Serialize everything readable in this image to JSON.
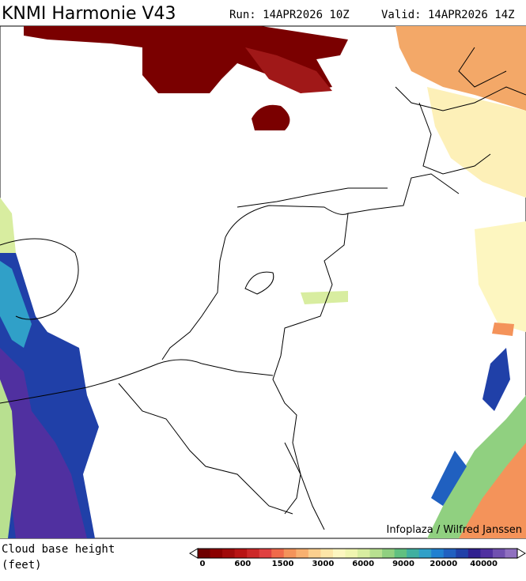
{
  "header": {
    "title": "KNMI Harmonie V43",
    "run": "Run: 14APR2026 10Z",
    "valid": "Valid: 14APR2026 14Z"
  },
  "credit": "Infoplaza / Wilfred Janssen",
  "legend": {
    "title_line1": "Cloud base height",
    "title_line2": "(feet)",
    "labels": [
      "0",
      "600",
      "1500",
      "3000",
      "6000",
      "9000",
      "20000",
      "40000"
    ]
  }
}
